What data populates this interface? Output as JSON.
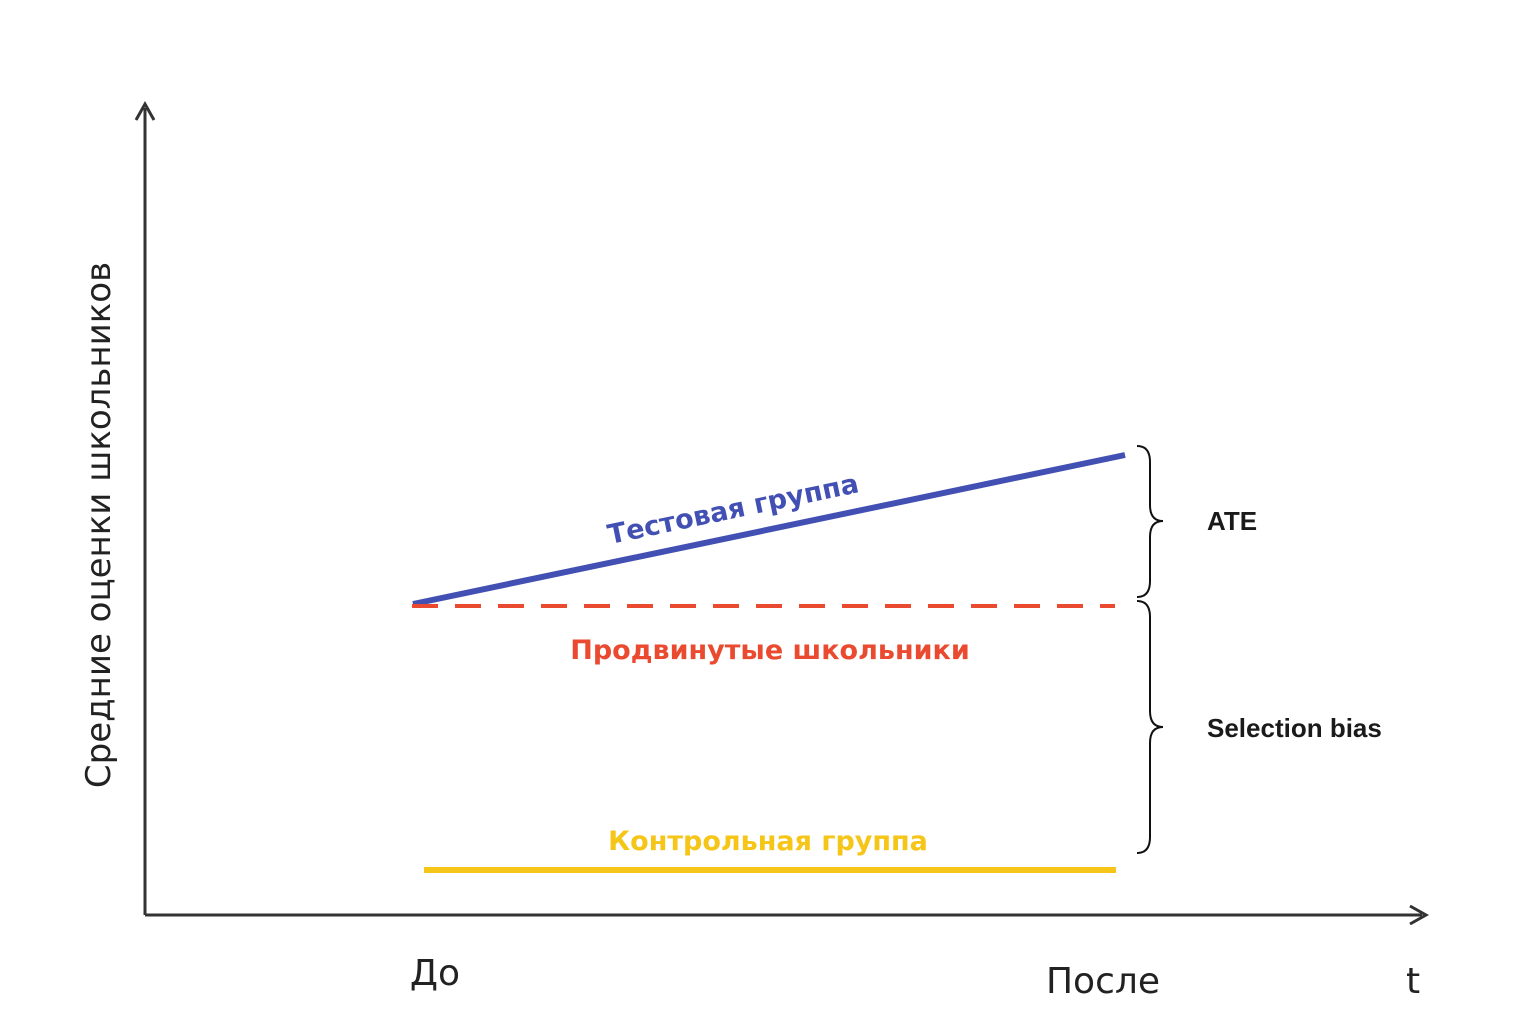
{
  "axes": {
    "y_label": "Средние оценки школьников",
    "x_ticks": [
      "До",
      "После"
    ],
    "x_axis_label": "t"
  },
  "series": {
    "test": {
      "label": "Тестовая группа",
      "color": "#4350b3"
    },
    "advanced": {
      "label": "Продвинутые школьники",
      "color": "#ea4a2f"
    },
    "control": {
      "label": "Контрольная группа",
      "color": "#f5c518"
    }
  },
  "braces": {
    "ate": "ATE",
    "selection_bias": "Selection bias"
  }
}
